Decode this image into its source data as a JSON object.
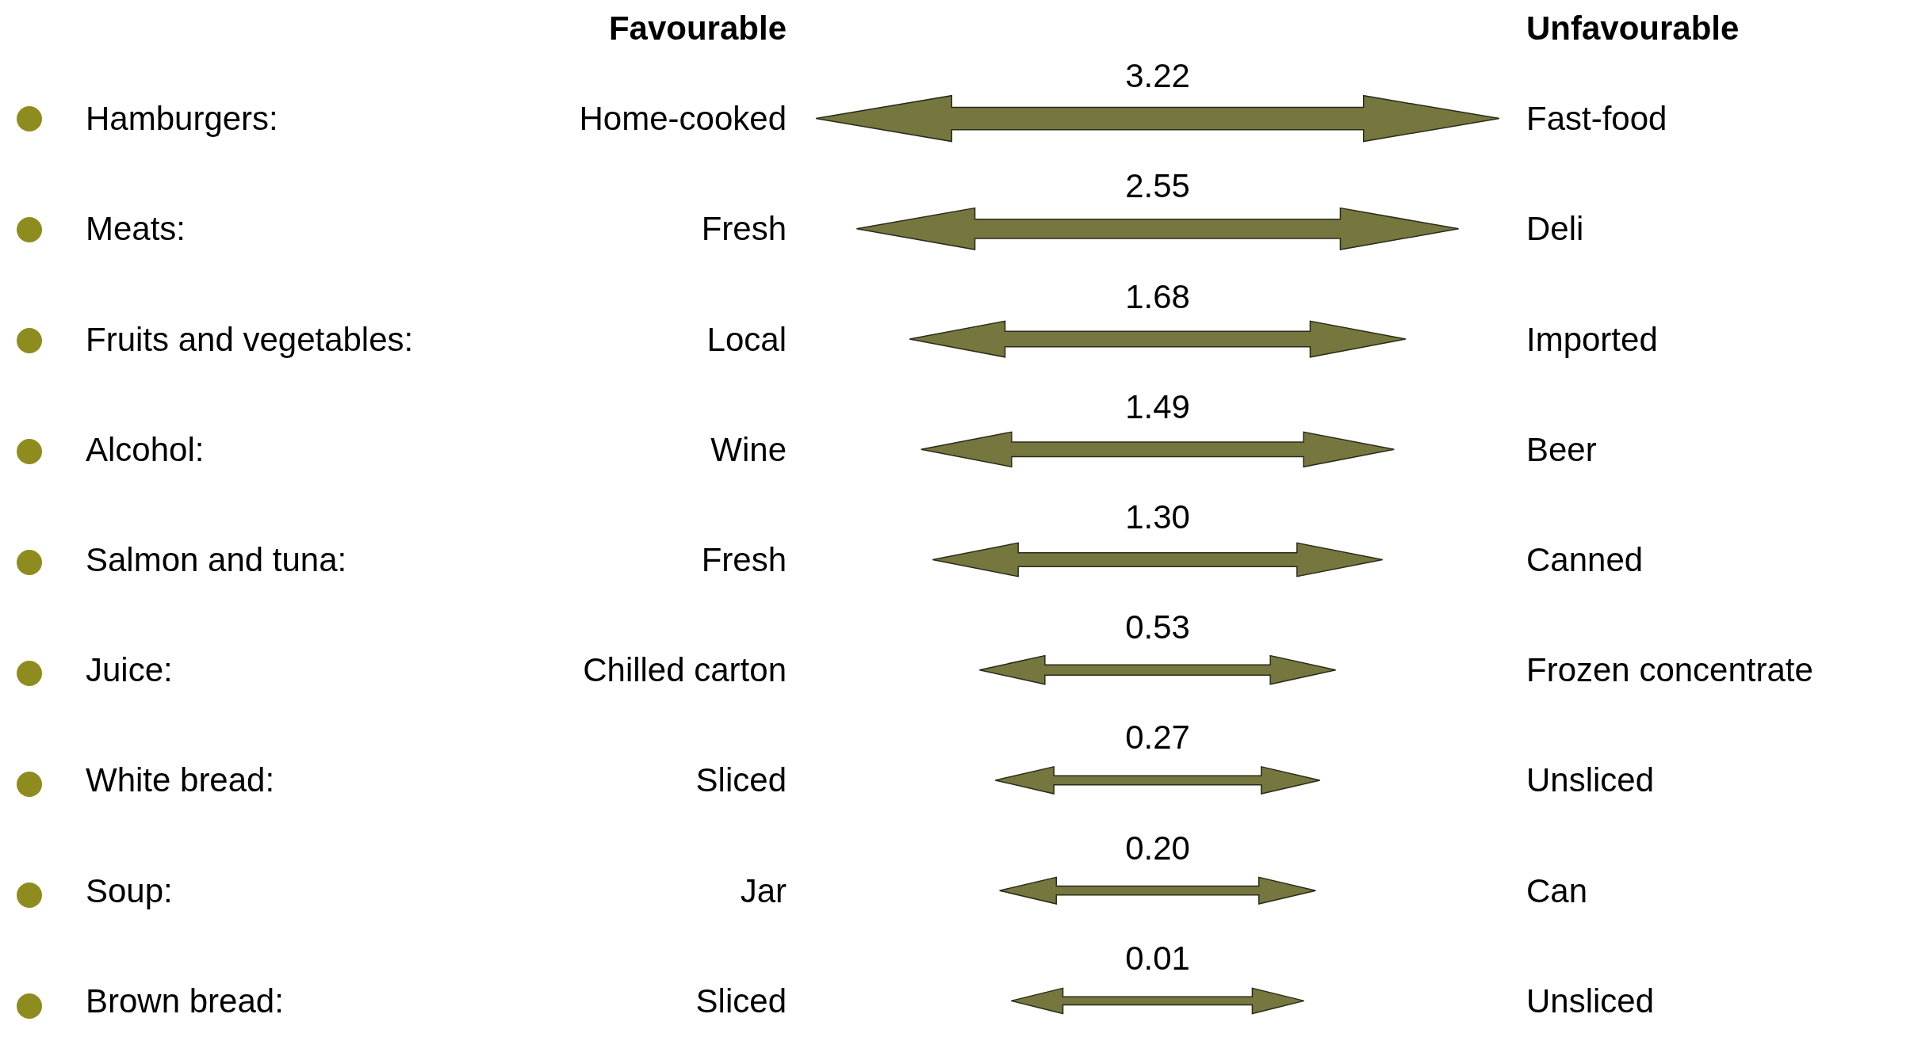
{
  "chart_data": {
    "type": "other",
    "categories": [
      "Hamburgers",
      "Meats",
      "Fruits and vegetables",
      "Alcohol",
      "Salmon and tuna",
      "Juice",
      "White bread",
      "Soup",
      "Brown bread"
    ],
    "values": [
      3.22,
      2.55,
      1.68,
      1.49,
      1.3,
      0.53,
      0.27,
      0.2,
      0.01
    ],
    "value_labels": [
      "3.22",
      "2.55",
      "1.68",
      "1.49",
      "1.30",
      "0.53",
      "0.27",
      "0.20",
      "0.01"
    ],
    "color": "#76773f",
    "annotations": [
      "Favourable",
      "Unfavourable",
      "Home-cooked",
      "Fast-food",
      "Fresh",
      "Deli",
      "Local",
      "Imported",
      "Wine",
      "Beer",
      "Fresh",
      "Canned",
      "Chilled carton",
      "Frozen concentrate",
      "Sliced",
      "Unsliced",
      "Jar",
      "Can",
      "Sliced",
      "Unsliced",
      ":"
    ]
  }
}
